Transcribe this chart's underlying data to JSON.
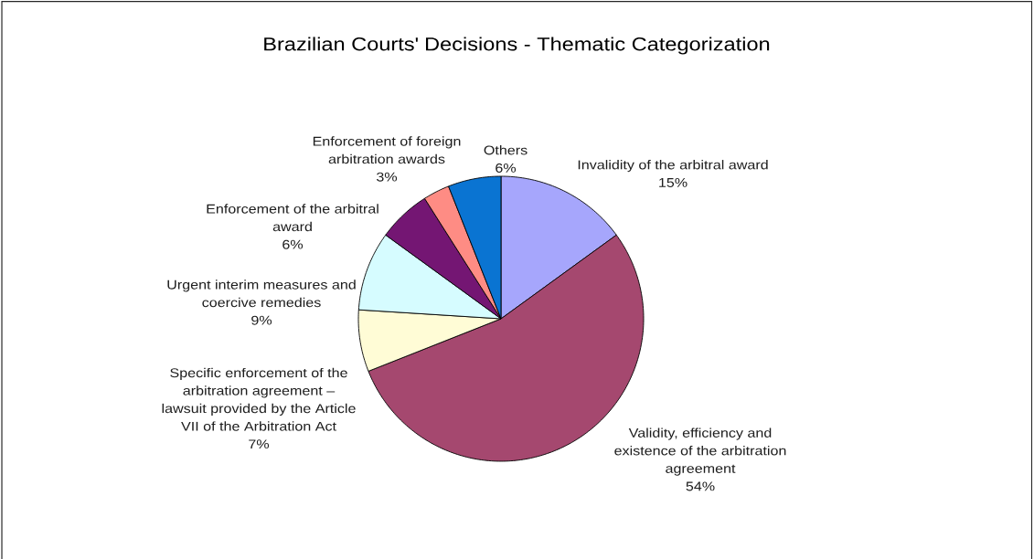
{
  "chart_data": {
    "type": "pie",
    "title": "Brazilian Courts' Decisions - Thematic Categorization",
    "categories": [
      "Invalidity of the arbitral award",
      "Validity, efficiency and existence of the arbitration agreement",
      "Specific enforcement of the arbitration agreement – lawsuit provided by the Article VII of the Arbitration Act",
      "Urgent interim measures and coercive remedies",
      "Enforcement of the arbitral award",
      "Enforcement of foreign arbitration awards",
      "Others"
    ],
    "values": [
      15,
      54,
      7,
      9,
      6,
      3,
      6
    ],
    "value_labels": [
      "15%",
      "54%",
      "7%",
      "9%",
      "6%",
      "3%",
      "6%"
    ],
    "colors": [
      "#a6a6fc",
      "#a5486f",
      "#fffcd6",
      "#d6fcff",
      "#741673",
      "#fe8c84",
      "#0a74d2"
    ]
  }
}
